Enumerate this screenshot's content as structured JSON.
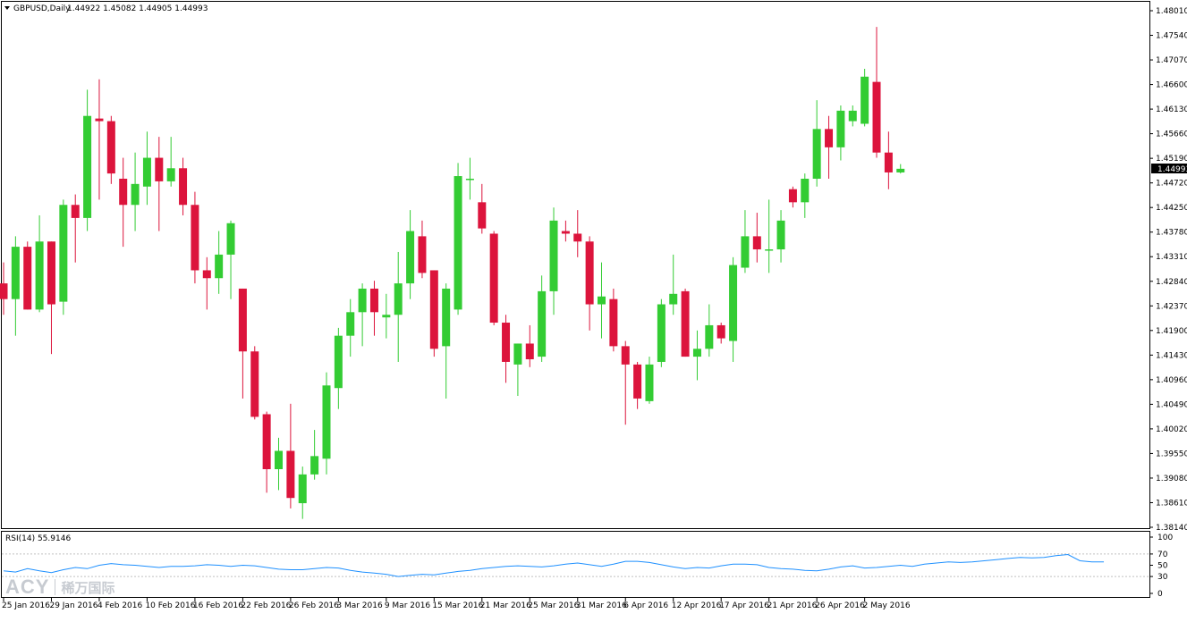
{
  "header": {
    "menu_icon": "triangle-down-icon",
    "symbol_label": "GBPUSD,Daily",
    "ohlc_text": "1.44922 1.45082 1.44905 1.44993"
  },
  "rsi_panel": {
    "label": "RSI(14) 55.9146",
    "levels": [
      70,
      30
    ],
    "scale": [
      "100",
      "70",
      "50",
      "30",
      "0"
    ]
  },
  "watermark": {
    "logo": "ACY",
    "brand_cn": "稀万国际"
  },
  "price_scale": {
    "labels": [
      "1.48010",
      "1.47540",
      "1.47070",
      "1.46600",
      "1.46130",
      "1.45660",
      "1.45190",
      "1.44720",
      "1.44250",
      "1.43780",
      "1.43310",
      "1.42840",
      "1.42370",
      "1.41900",
      "1.41430",
      "1.40960",
      "1.40490",
      "1.40020",
      "1.39550",
      "1.39080",
      "1.38610",
      "1.38140"
    ],
    "current_price": "1.44993"
  },
  "colors": {
    "bull": "#33cc33",
    "bear": "#dc143c",
    "rsi_line": "#1e90ff",
    "grid_level": "#c0c0c0",
    "axis": "#000000",
    "background": "#ffffff"
  },
  "chart_data": [
    {
      "type": "candlestick",
      "title": "GBPUSD,Daily",
      "ylim": [
        1.3814,
        1.4801
      ],
      "x_labels": [
        "25 Jan 2016",
        "29 Jan 2016",
        "4 Feb 2016",
        "10 Feb 2016",
        "16 Feb 2016",
        "22 Feb 2016",
        "26 Feb 2016",
        "3 Mar 2016",
        "9 Mar 2016",
        "15 Mar 2016",
        "21 Mar 2016",
        "25 Mar 2016",
        "31 Mar 2016",
        "6 Apr 2016",
        "12 Apr 2016",
        "17 Apr 2016",
        "21 Apr 2016",
        "26 Apr 2016",
        "2 May 2016"
      ],
      "candles": [
        {
          "o": 1.428,
          "h": 1.432,
          "l": 1.422,
          "c": 1.425
        },
        {
          "o": 1.425,
          "h": 1.437,
          "l": 1.418,
          "c": 1.435
        },
        {
          "o": 1.435,
          "h": 1.436,
          "l": 1.423,
          "c": 1.423
        },
        {
          "o": 1.423,
          "h": 1.441,
          "l": 1.4225,
          "c": 1.436
        },
        {
          "o": 1.436,
          "h": 1.436,
          "l": 1.4145,
          "c": 1.424
        },
        {
          "o": 1.4245,
          "h": 1.444,
          "l": 1.422,
          "c": 1.443
        },
        {
          "o": 1.443,
          "h": 1.445,
          "l": 1.432,
          "c": 1.4405
        },
        {
          "o": 1.4405,
          "h": 1.465,
          "l": 1.438,
          "c": 1.46
        },
        {
          "o": 1.4595,
          "h": 1.467,
          "l": 1.444,
          "c": 1.459
        },
        {
          "o": 1.459,
          "h": 1.46,
          "l": 1.447,
          "c": 1.449
        },
        {
          "o": 1.448,
          "h": 1.452,
          "l": 1.435,
          "c": 1.443
        },
        {
          "o": 1.443,
          "h": 1.453,
          "l": 1.438,
          "c": 1.447
        },
        {
          "o": 1.4465,
          "h": 1.457,
          "l": 1.443,
          "c": 1.452
        },
        {
          "o": 1.452,
          "h": 1.456,
          "l": 1.438,
          "c": 1.4475
        },
        {
          "o": 1.4475,
          "h": 1.456,
          "l": 1.4465,
          "c": 1.45
        },
        {
          "o": 1.45,
          "h": 1.452,
          "l": 1.441,
          "c": 1.443
        },
        {
          "o": 1.443,
          "h": 1.4455,
          "l": 1.428,
          "c": 1.4305
        },
        {
          "o": 1.4305,
          "h": 1.433,
          "l": 1.423,
          "c": 1.429
        },
        {
          "o": 1.429,
          "h": 1.438,
          "l": 1.426,
          "c": 1.4335
        },
        {
          "o": 1.4335,
          "h": 1.44,
          "l": 1.425,
          "c": 1.4395
        },
        {
          "o": 1.427,
          "h": 1.427,
          "l": 1.406,
          "c": 1.415
        },
        {
          "o": 1.415,
          "h": 1.416,
          "l": 1.402,
          "c": 1.4025
        },
        {
          "o": 1.403,
          "h": 1.4035,
          "l": 1.388,
          "c": 1.3925
        },
        {
          "o": 1.3925,
          "h": 1.3985,
          "l": 1.3885,
          "c": 1.396
        },
        {
          "o": 1.396,
          "h": 1.405,
          "l": 1.385,
          "c": 1.387
        },
        {
          "o": 1.386,
          "h": 1.393,
          "l": 1.383,
          "c": 1.3915
        },
        {
          "o": 1.3915,
          "h": 1.4,
          "l": 1.3905,
          "c": 1.395
        },
        {
          "o": 1.3945,
          "h": 1.411,
          "l": 1.3915,
          "c": 1.4085
        },
        {
          "o": 1.408,
          "h": 1.4195,
          "l": 1.404,
          "c": 1.418
        },
        {
          "o": 1.418,
          "h": 1.425,
          "l": 1.414,
          "c": 1.4225
        },
        {
          "o": 1.4225,
          "h": 1.428,
          "l": 1.416,
          "c": 1.427
        },
        {
          "o": 1.427,
          "h": 1.4285,
          "l": 1.418,
          "c": 1.4225
        },
        {
          "o": 1.4215,
          "h": 1.426,
          "l": 1.4175,
          "c": 1.422
        },
        {
          "o": 1.422,
          "h": 1.434,
          "l": 1.413,
          "c": 1.428
        },
        {
          "o": 1.428,
          "h": 1.442,
          "l": 1.425,
          "c": 1.438
        },
        {
          "o": 1.437,
          "h": 1.44,
          "l": 1.429,
          "c": 1.43
        },
        {
          "o": 1.4305,
          "h": 1.4305,
          "l": 1.414,
          "c": 1.4155
        },
        {
          "o": 1.416,
          "h": 1.428,
          "l": 1.406,
          "c": 1.427
        },
        {
          "o": 1.423,
          "h": 1.451,
          "l": 1.422,
          "c": 1.4485
        },
        {
          "o": 1.448,
          "h": 1.452,
          "l": 1.444,
          "c": 1.448
        },
        {
          "o": 1.4435,
          "h": 1.447,
          "l": 1.4375,
          "c": 1.4385
        },
        {
          "o": 1.4375,
          "h": 1.438,
          "l": 1.42,
          "c": 1.4205
        },
        {
          "o": 1.4205,
          "h": 1.422,
          "l": 1.409,
          "c": 1.413
        },
        {
          "o": 1.4125,
          "h": 1.4165,
          "l": 1.4065,
          "c": 1.4165
        },
        {
          "o": 1.4165,
          "h": 1.42,
          "l": 1.412,
          "c": 1.4135
        },
        {
          "o": 1.414,
          "h": 1.4295,
          "l": 1.413,
          "c": 1.4265
        },
        {
          "o": 1.4265,
          "h": 1.4425,
          "l": 1.422,
          "c": 1.44
        },
        {
          "o": 1.438,
          "h": 1.44,
          "l": 1.436,
          "c": 1.4375
        },
        {
          "o": 1.4375,
          "h": 1.442,
          "l": 1.433,
          "c": 1.436
        },
        {
          "o": 1.436,
          "h": 1.437,
          "l": 1.419,
          "c": 1.424
        },
        {
          "o": 1.424,
          "h": 1.432,
          "l": 1.4175,
          "c": 1.4255
        },
        {
          "o": 1.425,
          "h": 1.427,
          "l": 1.415,
          "c": 1.416
        },
        {
          "o": 1.416,
          "h": 1.417,
          "l": 1.401,
          "c": 1.4125
        },
        {
          "o": 1.4125,
          "h": 1.413,
          "l": 1.404,
          "c": 1.406
        },
        {
          "o": 1.4055,
          "h": 1.414,
          "l": 1.405,
          "c": 1.4125
        },
        {
          "o": 1.413,
          "h": 1.425,
          "l": 1.412,
          "c": 1.424
        },
        {
          "o": 1.424,
          "h": 1.4335,
          "l": 1.422,
          "c": 1.426
        },
        {
          "o": 1.4265,
          "h": 1.427,
          "l": 1.414,
          "c": 1.414
        },
        {
          "o": 1.414,
          "h": 1.419,
          "l": 1.4095,
          "c": 1.4155
        },
        {
          "o": 1.4155,
          "h": 1.424,
          "l": 1.414,
          "c": 1.42
        },
        {
          "o": 1.42,
          "h": 1.4205,
          "l": 1.4165,
          "c": 1.4175
        },
        {
          "o": 1.417,
          "h": 1.433,
          "l": 1.413,
          "c": 1.4315
        },
        {
          "o": 1.431,
          "h": 1.442,
          "l": 1.43,
          "c": 1.437
        },
        {
          "o": 1.437,
          "h": 1.4415,
          "l": 1.432,
          "c": 1.4345
        },
        {
          "o": 1.4345,
          "h": 1.444,
          "l": 1.43,
          "c": 1.4345
        },
        {
          "o": 1.4345,
          "h": 1.442,
          "l": 1.432,
          "c": 1.44
        },
        {
          "o": 1.446,
          "h": 1.4465,
          "l": 1.4425,
          "c": 1.4435
        },
        {
          "o": 1.4435,
          "h": 1.449,
          "l": 1.4405,
          "c": 1.448
        },
        {
          "o": 1.448,
          "h": 1.463,
          "l": 1.4465,
          "c": 1.4575
        },
        {
          "o": 1.4575,
          "h": 1.46,
          "l": 1.448,
          "c": 1.454
        },
        {
          "o": 1.454,
          "h": 1.462,
          "l": 1.4515,
          "c": 1.461
        },
        {
          "o": 1.459,
          "h": 1.462,
          "l": 1.458,
          "c": 1.461
        },
        {
          "o": 1.4585,
          "h": 1.469,
          "l": 1.458,
          "c": 1.4675
        },
        {
          "o": 1.4665,
          "h": 1.477,
          "l": 1.452,
          "c": 1.453
        },
        {
          "o": 1.453,
          "h": 1.457,
          "l": 1.446,
          "c": 1.4492
        },
        {
          "o": 1.4492,
          "h": 1.4508,
          "l": 1.449,
          "c": 1.4499
        }
      ]
    },
    {
      "type": "line",
      "title": "RSI(14) 55.9146",
      "ylim": [
        0,
        100
      ],
      "levels": [
        70,
        30
      ],
      "series": [
        {
          "values": [
            40,
            38,
            44,
            40,
            37,
            42,
            46,
            44,
            50,
            53,
            51,
            50,
            48,
            46,
            48,
            48,
            49,
            51,
            50,
            48,
            50,
            49,
            46,
            43,
            42,
            42,
            44,
            46,
            45,
            41,
            38,
            36,
            34,
            30,
            32,
            34,
            33,
            36,
            39,
            41,
            44,
            46,
            48,
            49,
            48,
            47,
            49,
            52,
            54,
            51,
            48,
            52,
            57,
            57,
            55,
            51,
            47,
            44,
            46,
            45,
            49,
            52,
            52,
            51,
            46,
            44,
            43,
            41,
            40,
            43,
            47,
            49,
            45,
            46,
            48,
            50,
            48,
            52,
            54,
            56,
            55,
            56,
            58,
            60,
            62,
            64,
            63,
            64,
            67,
            69,
            58,
            56,
            56
          ]
        }
      ]
    }
  ]
}
